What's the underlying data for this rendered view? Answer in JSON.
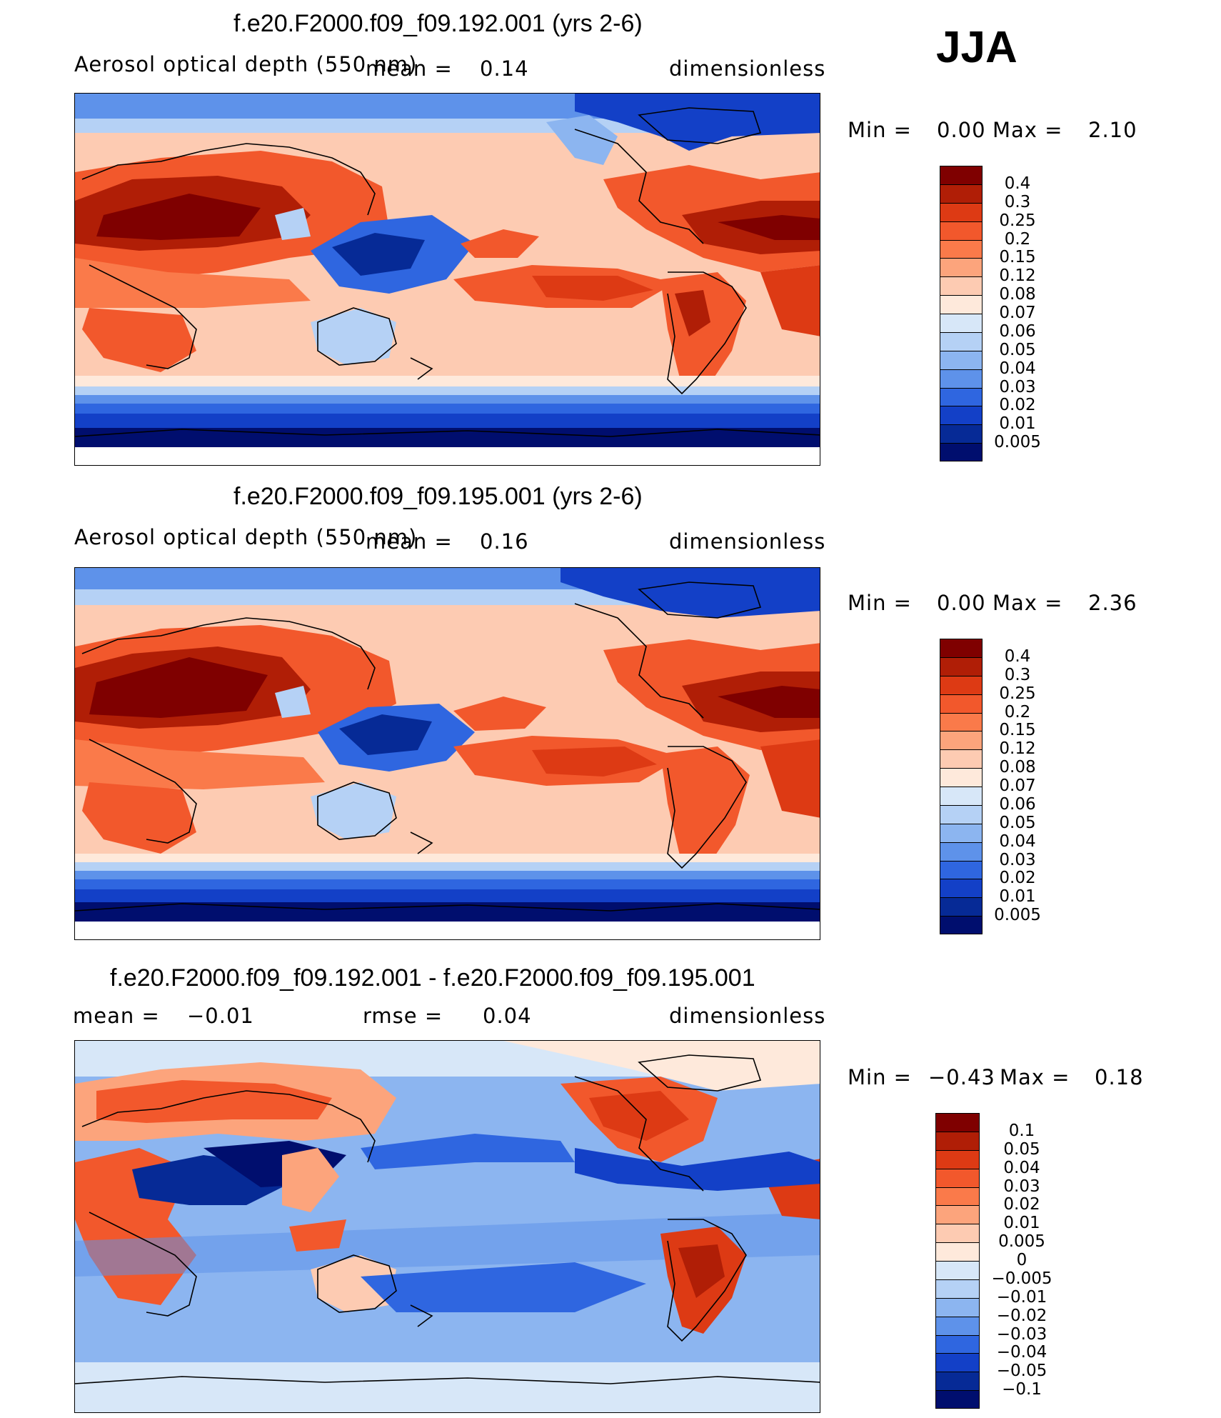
{
  "season": "JJA",
  "panels": [
    {
      "title": "f.e20.F2000.f09_f09.192.001 (yrs 2-6)",
      "variable": "Aerosol optical depth (550 nm)",
      "mean_label": "mean =",
      "mean_value": "0.14",
      "units": "dimensionless",
      "min_label": "Min =",
      "min_value": "0.00",
      "max_label": "Max =",
      "max_value": "2.10",
      "levels": [
        "0.4",
        "0.3",
        "0.25",
        "0.2",
        "0.15",
        "0.12",
        "0.08",
        "0.07",
        "0.06",
        "0.05",
        "0.04",
        "0.03",
        "0.02",
        "0.01",
        "0.005"
      ],
      "colors": [
        "#7f0000",
        "#b01e06",
        "#dd3a14",
        "#f2582c",
        "#fa7a4a",
        "#fca47c",
        "#fdcbb2",
        "#fee9db",
        "#d7e7f8",
        "#b5d1f5",
        "#8cb5f0",
        "#5e92ea",
        "#2f66e0",
        "#1340c7",
        "#062a96",
        "#000e6e"
      ]
    },
    {
      "title": "f.e20.F2000.f09_f09.195.001 (yrs 2-6)",
      "variable": "Aerosol optical depth (550 nm)",
      "mean_label": "mean =",
      "mean_value": "0.16",
      "units": "dimensionless",
      "min_label": "Min =",
      "min_value": "0.00",
      "max_label": "Max =",
      "max_value": "2.36",
      "levels": [
        "0.4",
        "0.3",
        "0.25",
        "0.2",
        "0.15",
        "0.12",
        "0.08",
        "0.07",
        "0.06",
        "0.05",
        "0.04",
        "0.03",
        "0.02",
        "0.01",
        "0.005"
      ],
      "colors": [
        "#7f0000",
        "#b01e06",
        "#dd3a14",
        "#f2582c",
        "#fa7a4a",
        "#fca47c",
        "#fdcbb2",
        "#fee9db",
        "#d7e7f8",
        "#b5d1f5",
        "#8cb5f0",
        "#5e92ea",
        "#2f66e0",
        "#1340c7",
        "#062a96",
        "#000e6e"
      ]
    },
    {
      "title": "f.e20.F2000.f09_f09.192.001 - f.e20.F2000.f09_f09.195.001",
      "mean_label": "mean =",
      "mean_value": "−0.01",
      "rmse_label": "rmse =",
      "rmse_value": "0.04",
      "units": "dimensionless",
      "min_label": "Min =",
      "min_value": "−0.43",
      "max_label": "Max =",
      "max_value": "0.18",
      "levels": [
        "0.1",
        "0.05",
        "0.04",
        "0.03",
        "0.02",
        "0.01",
        "0.005",
        "0",
        "−0.005",
        "−0.01",
        "−0.02",
        "−0.03",
        "−0.04",
        "−0.05",
        "−0.1"
      ],
      "colors": [
        "#7f0000",
        "#b01e06",
        "#dd3a14",
        "#f2582c",
        "#fa7a4a",
        "#fca47c",
        "#fdcbb2",
        "#fee9db",
        "#d7e7f8",
        "#b5d1f5",
        "#8cb5f0",
        "#5e92ea",
        "#2f66e0",
        "#1340c7",
        "#062a96",
        "#000e6e"
      ]
    }
  ]
}
